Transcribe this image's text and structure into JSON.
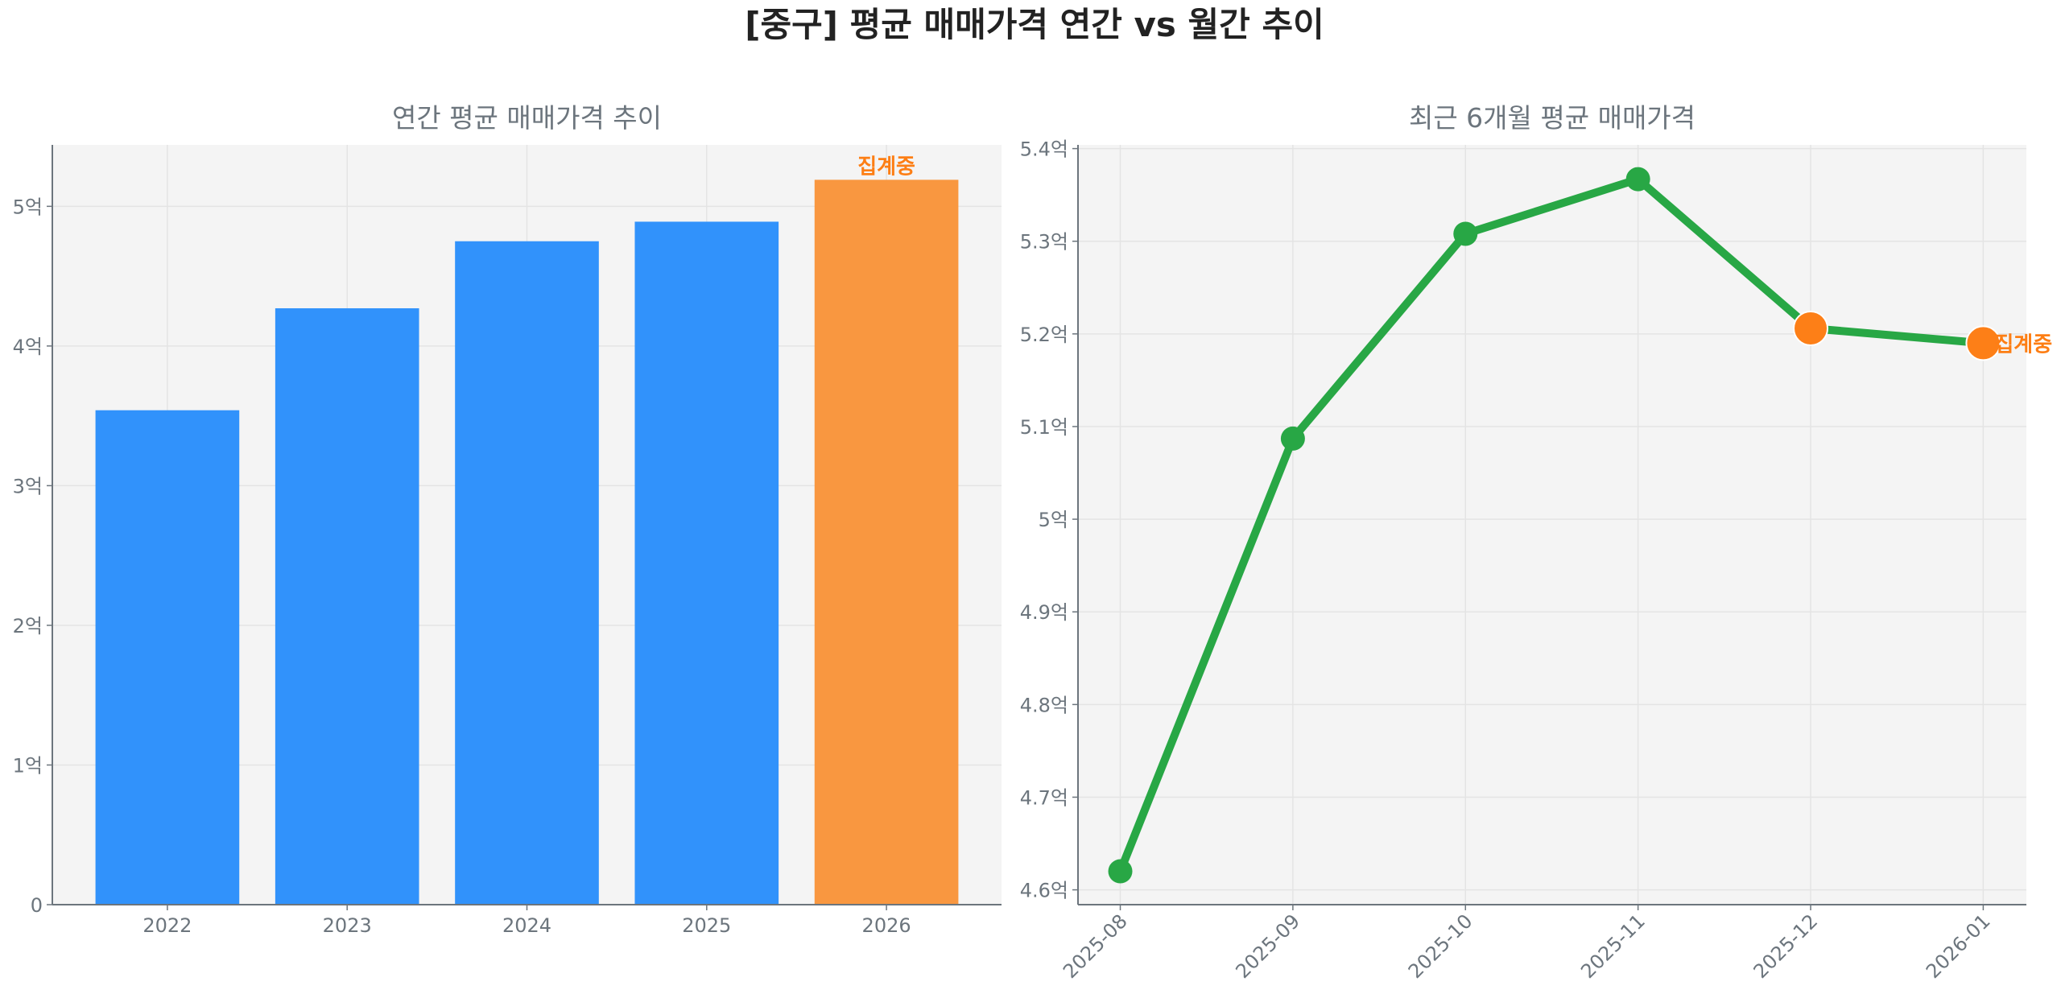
{
  "title": "[중구] 평균 매매가격 연간 vs 월간 추이",
  "chart_data": [
    {
      "type": "bar",
      "title": "연간 평균 매매가격 추이",
      "categories": [
        "2022",
        "2023",
        "2024",
        "2025",
        "2026"
      ],
      "values": [
        3.54,
        4.27,
        4.75,
        4.89,
        5.19
      ],
      "unit": "억",
      "ylim": [
        0,
        5.44
      ],
      "yticks": [
        0,
        1,
        2,
        3,
        4,
        5
      ],
      "ytick_labels": [
        "0",
        "1억",
        "2억",
        "3억",
        "4억",
        "5억"
      ],
      "grid": true,
      "colors": [
        "#3192fb",
        "#3192fb",
        "#3192fb",
        "#3192fb",
        "#f99740"
      ],
      "annotations": [
        {
          "category": "2026",
          "text": "집계중",
          "color": "#fd7e14"
        }
      ]
    },
    {
      "type": "line",
      "title": "최근 6개월 평균 매매가격",
      "x": [
        "2025-08",
        "2025-09",
        "2025-10",
        "2025-11",
        "2025-12",
        "2026-01"
      ],
      "values": [
        4.62,
        5.087,
        5.308,
        5.367,
        5.206,
        5.19
      ],
      "unit": "억",
      "ylim": [
        4.584,
        5.404
      ],
      "yticks": [
        4.6,
        4.7,
        4.8,
        4.9,
        5.0,
        5.1,
        5.2,
        5.3,
        5.4
      ],
      "ytick_labels": [
        "4.6억",
        "4.7억",
        "4.8억",
        "4.9억",
        "5억",
        "5.1억",
        "5.2억",
        "5.3억",
        "5.4억"
      ],
      "grid": true,
      "line_color": "#28a745",
      "marker_colors": [
        "#28a745",
        "#28a745",
        "#28a745",
        "#28a745",
        "#fd7f17",
        "#fd7f17"
      ],
      "annotations": [
        {
          "x": "2026-01",
          "text": "집계중",
          "color": "#fd7e14"
        }
      ]
    }
  ]
}
